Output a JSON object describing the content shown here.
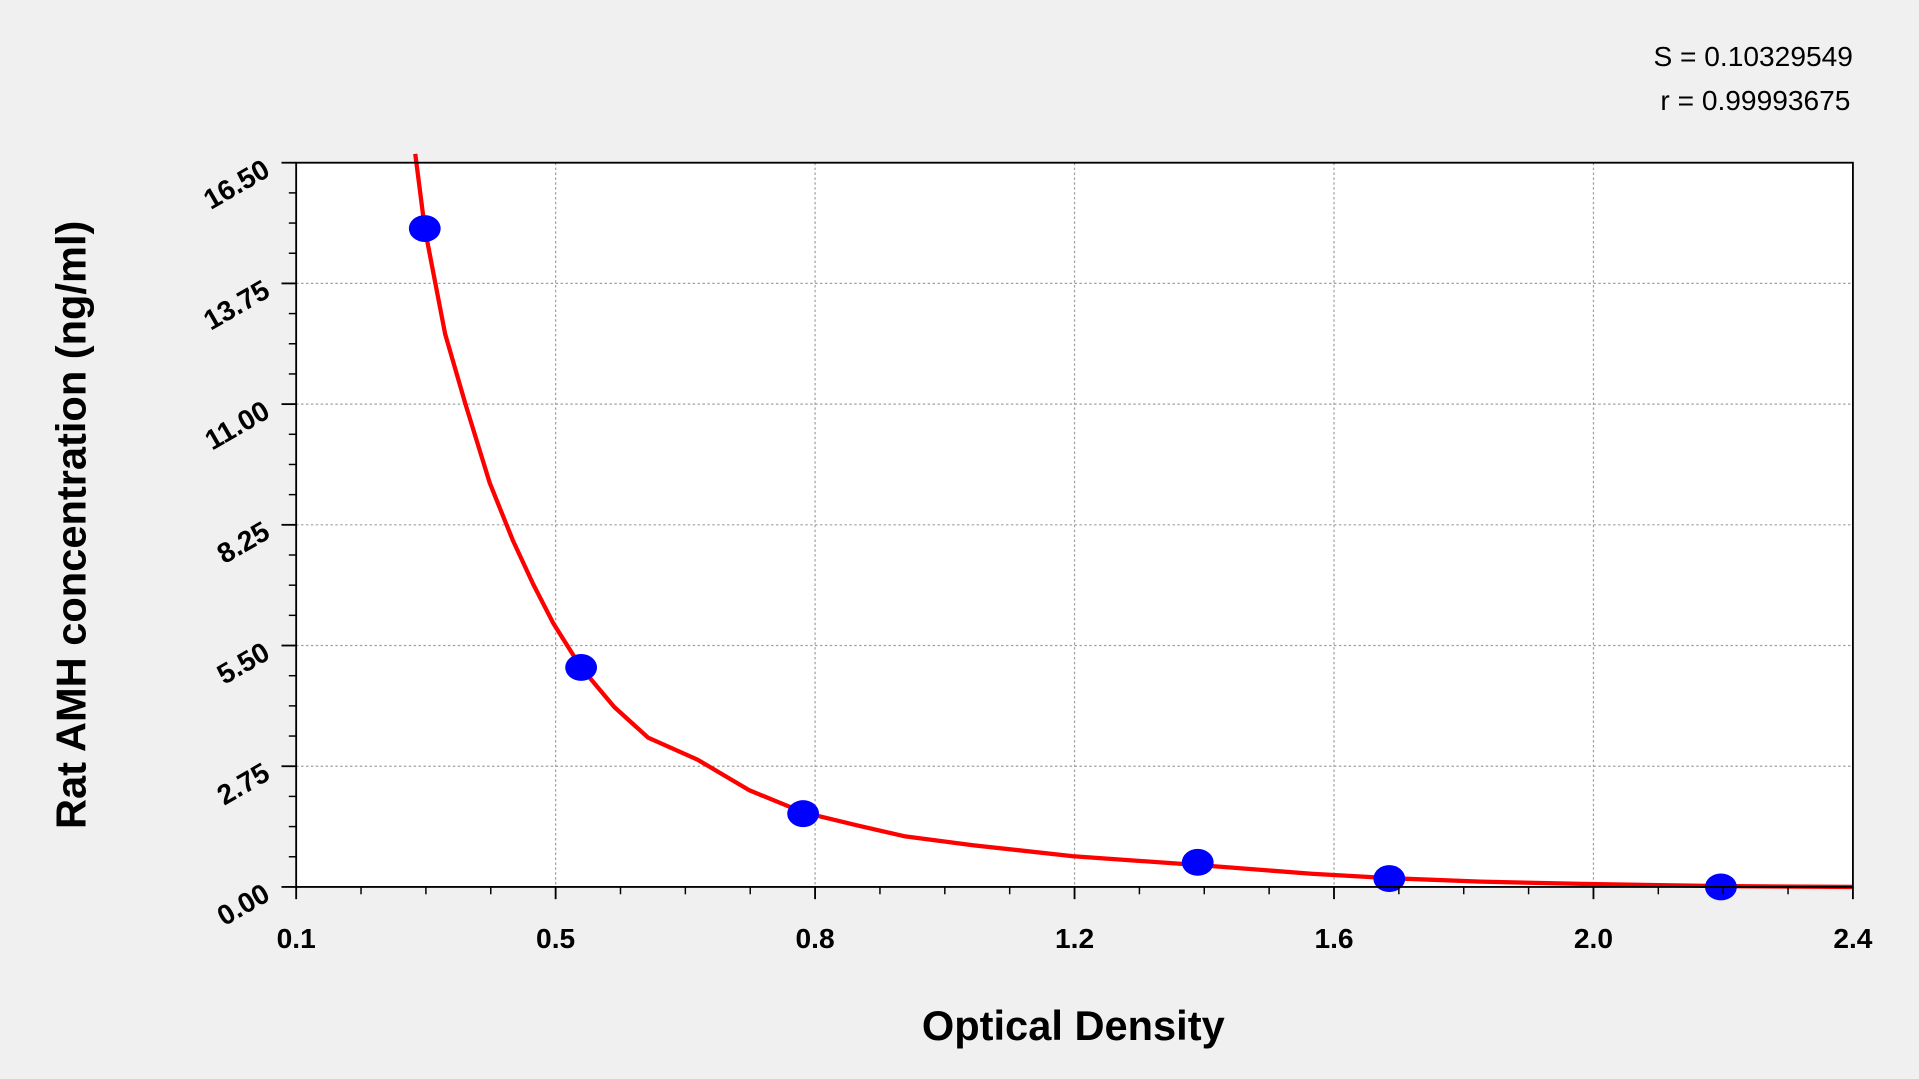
{
  "chart_data": {
    "type": "scatter",
    "title": "",
    "xlabel": "Optical Density",
    "ylabel": "Rat AMH concentration (ng/ml)",
    "xlim": [
      0.1,
      2.4
    ],
    "ylim": [
      0,
      16.5
    ],
    "x_tick_labels": [
      "0.1",
      "0.5",
      "0.8",
      "1.2",
      "1.6",
      "2.0",
      "2.4"
    ],
    "y_ticks": [
      0,
      2.75,
      5.5,
      8.25,
      11,
      13.75,
      16.5
    ],
    "y_tick_labels": [
      "0.00",
      "2.75",
      "5.50",
      "8.25",
      "11.00",
      "13.75",
      "16.50"
    ],
    "grid": true,
    "points": [
      {
        "x": 0.29,
        "y": 15.0
      },
      {
        "x": 0.521,
        "y": 5.0
      },
      {
        "x": 0.849,
        "y": 1.67
      },
      {
        "x": 1.432,
        "y": 0.56
      },
      {
        "x": 1.715,
        "y": 0.19
      },
      {
        "x": 2.205,
        "y": 0.0
      }
    ],
    "fit_curve": [
      [
        0.276,
        16.7
      ],
      [
        0.29,
        15.0
      ],
      [
        0.32,
        12.6
      ],
      [
        0.35,
        11.0
      ],
      [
        0.386,
        9.2
      ],
      [
        0.42,
        7.9
      ],
      [
        0.45,
        6.9
      ],
      [
        0.48,
        6.0
      ],
      [
        0.521,
        5.0
      ],
      [
        0.57,
        4.1
      ],
      [
        0.62,
        3.4
      ],
      [
        0.693,
        2.9
      ],
      [
        0.77,
        2.2
      ],
      [
        0.849,
        1.7
      ],
      [
        0.93,
        1.4
      ],
      [
        1.0,
        1.15
      ],
      [
        1.1,
        0.95
      ],
      [
        1.248,
        0.7
      ],
      [
        1.432,
        0.5
      ],
      [
        1.6,
        0.3
      ],
      [
        1.715,
        0.2
      ],
      [
        1.85,
        0.12
      ],
      [
        2.0,
        0.07
      ],
      [
        2.2,
        0.02
      ],
      [
        2.4,
        0.0
      ]
    ],
    "colors": {
      "points": "#0000ff",
      "curve": "#ff0000",
      "grid": "#a0a0a0",
      "background": "#ffffff"
    },
    "annotations": {
      "s": "S = 0.10329549",
      "r": "r = 0.99993675"
    }
  }
}
